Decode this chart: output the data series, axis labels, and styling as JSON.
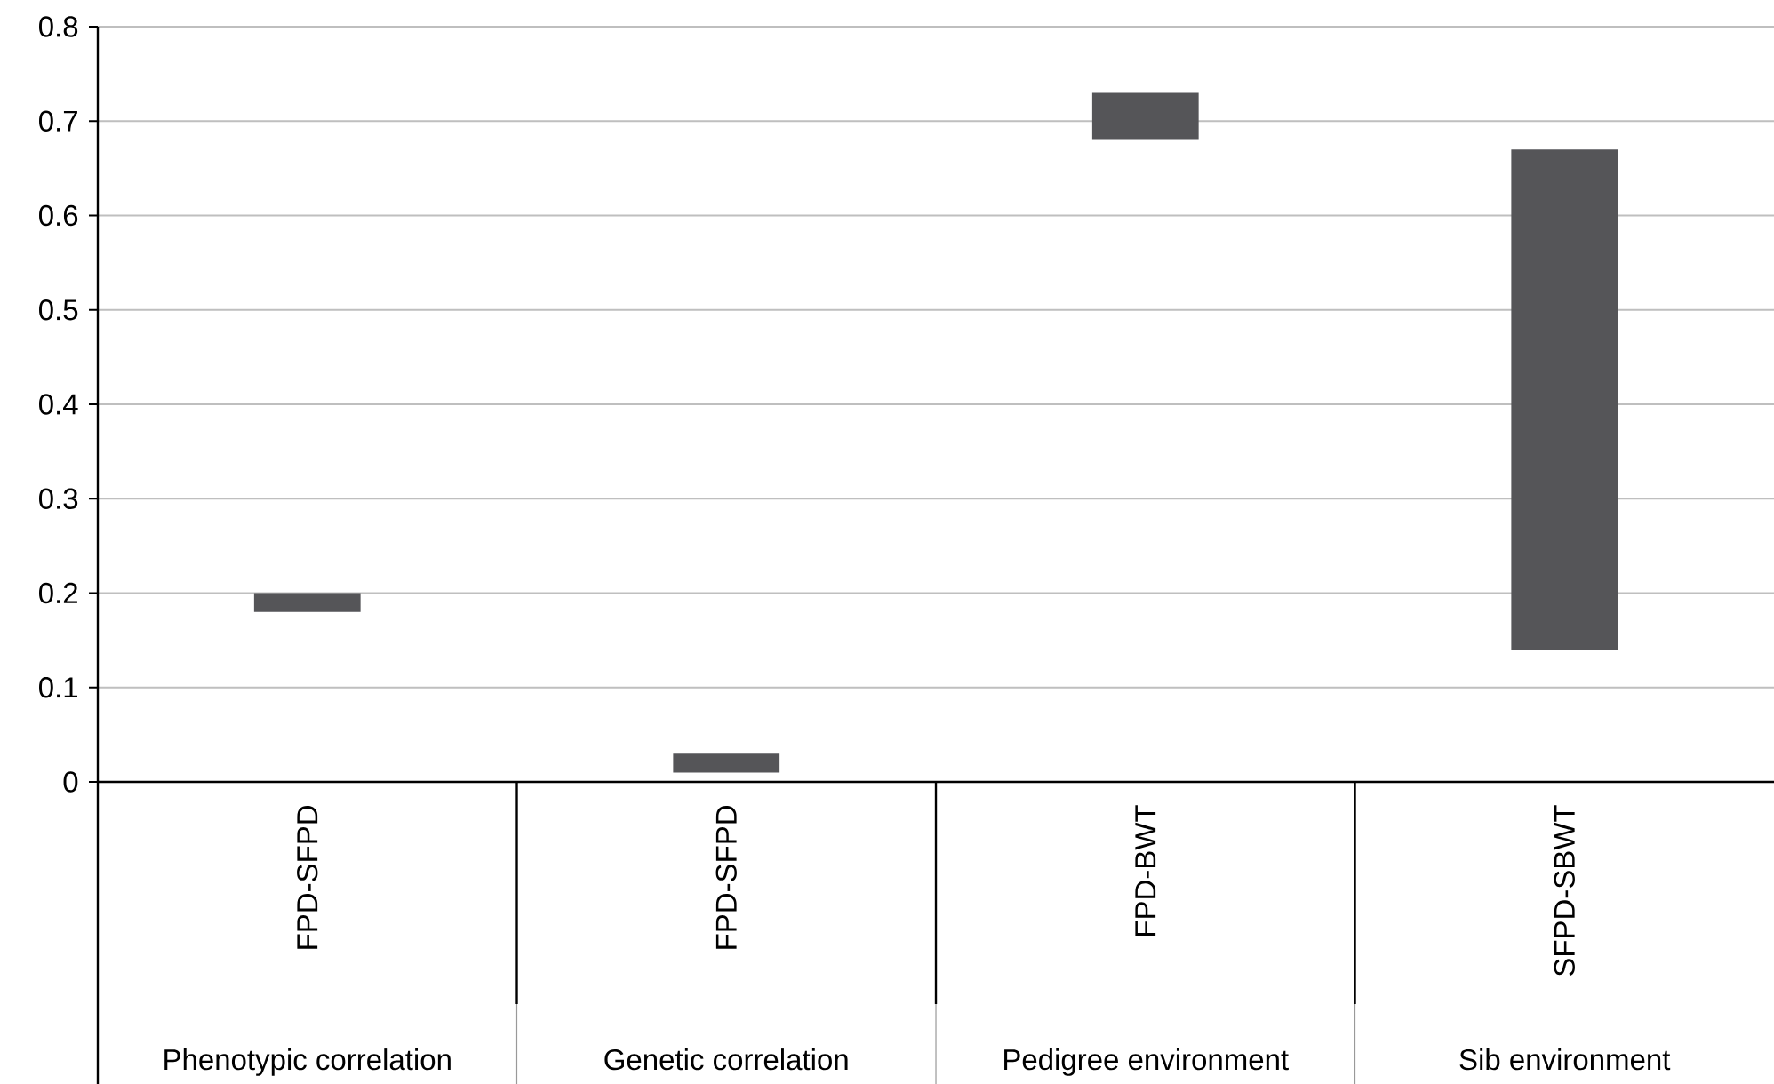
{
  "chart_data": {
    "type": "bar",
    "categories": [
      "FPD-SFPD",
      "FPD-SFPD",
      "FPD-BWT",
      "SFPD-SBWT"
    ],
    "base": [
      0.18,
      0.01,
      0.68,
      0.14
    ],
    "values": [
      0.02,
      0.02,
      0.05,
      0.53
    ],
    "color": "#555558",
    "ylim": [
      0,
      0.8
    ],
    "yticks": [
      0,
      0.1,
      0.2,
      0.3,
      0.4,
      0.5,
      0.6,
      0.7,
      0.8
    ],
    "grid": "y",
    "annotations": [
      "Phenotypic correlation",
      "Genetic correlation",
      "Pedigree environment",
      "Sib environment"
    ]
  }
}
